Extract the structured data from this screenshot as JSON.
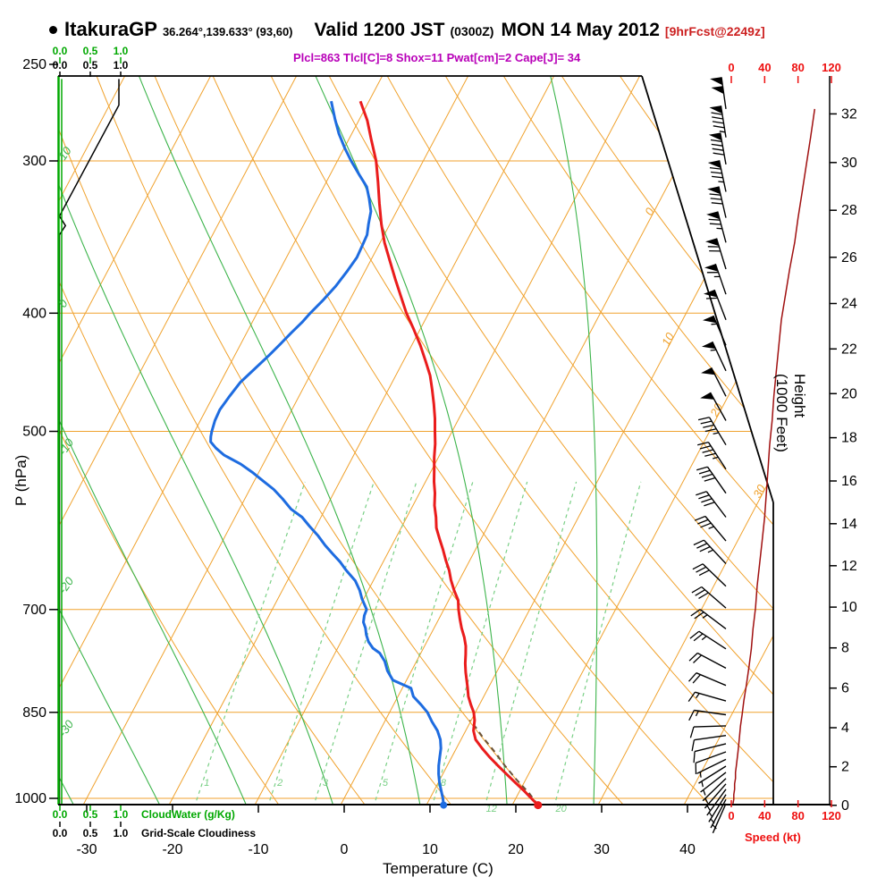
{
  "header": {
    "station": "ItakuraGP",
    "coords": "36.264°,139.633° (93,60)",
    "valid": "Valid 1200 JST",
    "valid_z": "(0300Z)",
    "valid_date": "MON 14 May 2012",
    "forecast_tag": "[9hrFcst@2249z]",
    "indices": "Plcl=863 Tlcl[C]=8 Shox=11 Pwat[cm]=2 Cape[J]= 34"
  },
  "axes": {
    "pressure": {
      "title": "P (hPa)",
      "ticks": [
        250,
        300,
        400,
        500,
        700,
        850,
        1000
      ]
    },
    "temperature": {
      "title": "Temperature (C)",
      "ticks": [
        -30,
        -20,
        -10,
        0,
        10,
        20,
        30,
        40
      ]
    },
    "height": {
      "title": "Height (1000 Feet)",
      "ticks": [
        0,
        2,
        4,
        6,
        8,
        10,
        12,
        14,
        16,
        18,
        20,
        22,
        24,
        26,
        28,
        30,
        32
      ]
    },
    "speed": {
      "title": "Speed (kt)",
      "ticks": [
        0,
        40,
        80,
        120
      ]
    },
    "cloudwater": {
      "title": "CloudWater (g/Kg)",
      "ticks": [
        "0.0",
        "0.5",
        "1.0"
      ]
    },
    "cloudiness": {
      "title": "Grid-Scale Cloudiness",
      "ticks": [
        "0.0",
        "0.5",
        "1.0"
      ]
    }
  },
  "chart_data": {
    "type": "line",
    "subtype": "skew-t-log-p-sounding",
    "pressure_range_hpa": [
      250,
      1050
    ],
    "temperature_range_c": [
      -40,
      45
    ],
    "isotherm_label_values": [
      0,
      10,
      20,
      30
    ],
    "moist_adiabat_label_values": [
      10,
      0,
      -10,
      -20,
      -30
    ],
    "mixing_ratio_lines": [
      1,
      2,
      3,
      5,
      8,
      12,
      20
    ],
    "surface_temp_c": 23,
    "surface_dewpoint_c": 12,
    "temperature_profile": [
      [
        1013,
        23.0
      ],
      [
        1000,
        21.8
      ],
      [
        985,
        20.4
      ],
      [
        970,
        18.9
      ],
      [
        955,
        17.4
      ],
      [
        940,
        15.9
      ],
      [
        925,
        14.4
      ],
      [
        910,
        13.0
      ],
      [
        895,
        11.7
      ],
      [
        880,
        10.9
      ],
      [
        863,
        10.4
      ],
      [
        850,
        9.8
      ],
      [
        838,
        9.0
      ],
      [
        825,
        8.2
      ],
      [
        812,
        7.6
      ],
      [
        800,
        7.0
      ],
      [
        788,
        6.4
      ],
      [
        775,
        5.8
      ],
      [
        762,
        5.3
      ],
      [
        750,
        4.8
      ],
      [
        738,
        4.1
      ],
      [
        725,
        3.2
      ],
      [
        712,
        2.4
      ],
      [
        700,
        1.7
      ],
      [
        688,
        1.1
      ],
      [
        675,
        0.0
      ],
      [
        662,
        -1.0
      ],
      [
        650,
        -1.8
      ],
      [
        638,
        -2.8
      ],
      [
        625,
        -3.8
      ],
      [
        612,
        -4.9
      ],
      [
        600,
        -5.9
      ],
      [
        588,
        -6.6
      ],
      [
        575,
        -7.5
      ],
      [
        562,
        -8.2
      ],
      [
        550,
        -9.0
      ],
      [
        538,
        -9.7
      ],
      [
        525,
        -10.5
      ],
      [
        512,
        -11.2
      ],
      [
        500,
        -12.0
      ],
      [
        488,
        -12.8
      ],
      [
        475,
        -13.8
      ],
      [
        462,
        -14.9
      ],
      [
        450,
        -16.0
      ],
      [
        438,
        -17.4
      ],
      [
        425,
        -19.0
      ],
      [
        412,
        -20.8
      ],
      [
        400,
        -22.6
      ],
      [
        388,
        -24.2
      ],
      [
        375,
        -26.0
      ],
      [
        362,
        -27.8
      ],
      [
        350,
        -29.5
      ],
      [
        338,
        -31.0
      ],
      [
        325,
        -32.5
      ],
      [
        312,
        -34.0
      ],
      [
        300,
        -35.5
      ],
      [
        288,
        -37.4
      ],
      [
        278,
        -39.0
      ],
      [
        268,
        -41.0
      ]
    ],
    "dewpoint_profile": [
      [
        1013,
        12.0
      ],
      [
        1000,
        11.5
      ],
      [
        985,
        10.8
      ],
      [
        970,
        10.1
      ],
      [
        955,
        9.5
      ],
      [
        940,
        9.0
      ],
      [
        925,
        8.6
      ],
      [
        910,
        8.2
      ],
      [
        895,
        7.6
      ],
      [
        880,
        6.7
      ],
      [
        865,
        5.5
      ],
      [
        850,
        4.4
      ],
      [
        838,
        3.2
      ],
      [
        825,
        1.8
      ],
      [
        812,
        1.0
      ],
      [
        800,
        -1.6
      ],
      [
        786,
        -2.8
      ],
      [
        772,
        -3.7
      ],
      [
        760,
        -4.8
      ],
      [
        753,
        -5.9
      ],
      [
        744,
        -6.8
      ],
      [
        734,
        -7.5
      ],
      [
        725,
        -8.0
      ],
      [
        717,
        -8.6
      ],
      [
        708,
        -8.9
      ],
      [
        700,
        -9.0
      ],
      [
        693,
        -9.6
      ],
      [
        686,
        -10.2
      ],
      [
        675,
        -11.0
      ],
      [
        663,
        -12.1
      ],
      [
        650,
        -13.8
      ],
      [
        640,
        -15.0
      ],
      [
        630,
        -16.4
      ],
      [
        620,
        -17.8
      ],
      [
        609,
        -19.2
      ],
      [
        598,
        -20.8
      ],
      [
        588,
        -22.2
      ],
      [
        579,
        -24.0
      ],
      [
        568,
        -25.6
      ],
      [
        558,
        -27.2
      ],
      [
        550,
        -28.8
      ],
      [
        540,
        -30.8
      ],
      [
        532,
        -32.6
      ],
      [
        523,
        -35.1
      ],
      [
        516,
        -36.5
      ],
      [
        510,
        -37.5
      ],
      [
        505,
        -37.8
      ],
      [
        500,
        -38.0
      ],
      [
        490,
        -38.3
      ],
      [
        480,
        -38.4
      ],
      [
        468,
        -38.1
      ],
      [
        456,
        -37.7
      ],
      [
        445,
        -36.9
      ],
      [
        433,
        -36.0
      ],
      [
        424,
        -35.4
      ],
      [
        415,
        -34.8
      ],
      [
        407,
        -34.2
      ],
      [
        400,
        -33.8
      ],
      [
        390,
        -33.1
      ],
      [
        380,
        -32.5
      ],
      [
        370,
        -32.1
      ],
      [
        360,
        -31.8
      ],
      [
        352,
        -31.9
      ],
      [
        345,
        -32.0
      ],
      [
        338,
        -32.5
      ],
      [
        330,
        -33.0
      ],
      [
        322,
        -34.0
      ],
      [
        315,
        -35.0
      ],
      [
        308,
        -36.6
      ],
      [
        300,
        -38.4
      ],
      [
        293,
        -39.9
      ],
      [
        285,
        -41.5
      ],
      [
        277,
        -42.9
      ],
      [
        268,
        -44.4
      ]
    ],
    "parcel_path": [
      [
        1013,
        23.0
      ],
      [
        990,
        21.2
      ],
      [
        965,
        18.9
      ],
      [
        940,
        16.7
      ],
      [
        915,
        14.6
      ],
      [
        890,
        12.3
      ],
      [
        875,
        11.0
      ],
      [
        863,
        9.8
      ]
    ],
    "wind_profile_kt": [
      [
        272,
        100,
        352
      ],
      [
        287,
        95,
        351
      ],
      [
        302,
        90,
        350
      ],
      [
        318,
        85,
        348
      ],
      [
        334,
        80,
        347
      ],
      [
        350,
        76,
        345
      ],
      [
        368,
        70,
        343
      ],
      [
        386,
        65,
        341
      ],
      [
        405,
        60,
        339
      ],
      [
        425,
        57,
        337
      ],
      [
        446,
        54,
        335
      ],
      [
        468,
        51,
        333
      ],
      [
        490,
        49,
        331
      ],
      [
        513,
        46,
        329
      ],
      [
        537,
        44,
        327
      ],
      [
        562,
        42,
        325
      ],
      [
        588,
        40,
        323
      ],
      [
        615,
        37,
        320
      ],
      [
        642,
        34,
        317
      ],
      [
        670,
        31,
        314
      ],
      [
        698,
        29,
        311
      ],
      [
        726,
        26,
        307
      ],
      [
        754,
        24,
        303
      ],
      [
        782,
        21,
        298
      ],
      [
        808,
        18,
        293
      ],
      [
        832,
        15,
        286
      ],
      [
        854,
        13,
        278
      ],
      [
        872,
        11,
        268
      ],
      [
        888,
        10,
        262
      ],
      [
        902,
        9,
        256
      ],
      [
        916,
        8,
        250
      ],
      [
        929,
        7,
        244
      ],
      [
        941,
        6,
        238
      ],
      [
        952,
        5,
        232
      ],
      [
        963,
        5,
        226
      ],
      [
        973,
        4,
        221
      ],
      [
        983,
        4,
        216
      ],
      [
        993,
        3,
        212
      ],
      [
        1002,
        3,
        208
      ],
      [
        1010,
        2,
        204
      ]
    ],
    "cloudiness_profile": [
      [
        1013,
        0
      ],
      [
        345,
        0
      ],
      [
        339,
        0.1
      ],
      [
        333,
        0
      ],
      [
        270,
        1.0
      ],
      [
        257,
        1.0
      ]
    ],
    "cloud_water_profile": [
      [
        1013,
        0
      ],
      [
        257,
        0
      ]
    ],
    "colors": {
      "grid_orange": "#f0a22e",
      "grid_green": "#3cb44b",
      "mixing_green": "#79cf85",
      "axis_green": "#00a800",
      "temperature_red": "#ea1c1c",
      "dewpoint_blue": "#1e6ce0",
      "parcel_brown": "#6a5238",
      "speed_curve_red": "#a01010",
      "speed_axis_red": "#ee1111",
      "indices_magenta": "#b800b8",
      "forecast_red": "#cc2020"
    }
  }
}
